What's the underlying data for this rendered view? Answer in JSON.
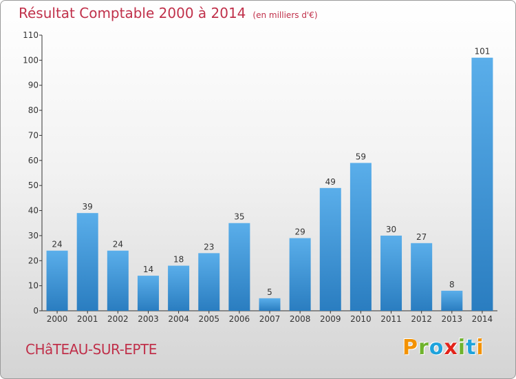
{
  "title": "Résultat Comptable 2000 à 2014",
  "subtitle": "(en milliers d'€)",
  "commune": "CHâTEAU-SUR-EPTE",
  "logo": {
    "text": "Proxiti",
    "colors": [
      "#f39200",
      "#6fb32d",
      "#1fa3dc",
      "#e2231a",
      "#6fb32d",
      "#1fa3dc",
      "#f39200"
    ]
  },
  "colors": {
    "bar_light": "#5aaeea",
    "bar_dark": "#2a7dc0",
    "title": "#c0304a"
  },
  "chart_data": {
    "type": "bar",
    "categories": [
      "2000",
      "2001",
      "2002",
      "2003",
      "2004",
      "2005",
      "2006",
      "2007",
      "2008",
      "2009",
      "2010",
      "2011",
      "2012",
      "2013",
      "2014"
    ],
    "values": [
      24,
      39,
      24,
      14,
      18,
      23,
      35,
      5,
      29,
      49,
      59,
      30,
      27,
      8,
      101
    ],
    "data_labels": [
      "24",
      "39",
      "24",
      "14",
      "18",
      "23",
      "35",
      "5",
      "29",
      "49",
      "59",
      "30",
      "27",
      "8",
      "101"
    ],
    "title": "Résultat Comptable 2000 à 2014",
    "xlabel": "",
    "ylabel": "",
    "ylim": [
      0,
      110
    ],
    "yticks": [
      0,
      10,
      20,
      30,
      40,
      50,
      60,
      70,
      80,
      90,
      100,
      110
    ],
    "ytick_labels": [
      "0",
      "10",
      "20",
      "30",
      "40",
      "50",
      "60",
      "70",
      "80",
      "90",
      "100",
      "110"
    ],
    "grid": false,
    "legend": "none"
  }
}
